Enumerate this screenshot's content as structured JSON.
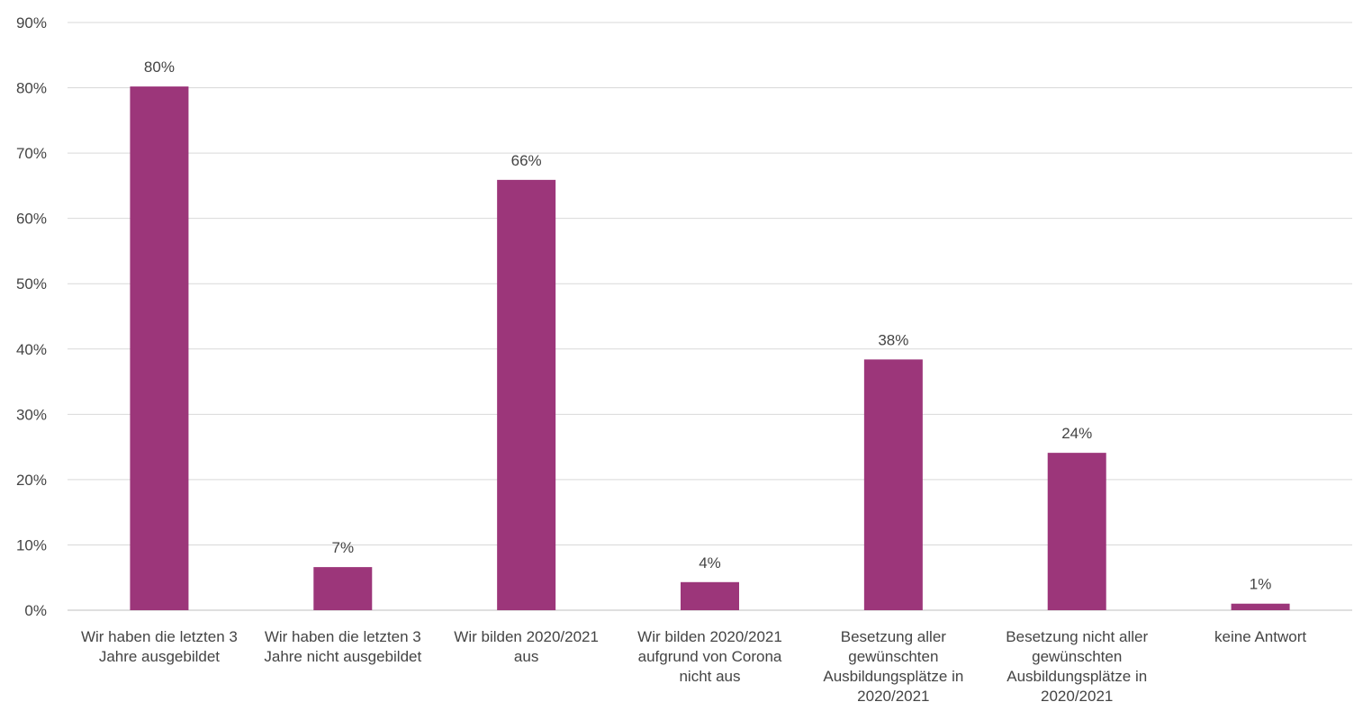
{
  "chart_data": {
    "type": "bar",
    "categories": [
      [
        "Wir haben die letzten 3",
        "Jahre ausgebildet"
      ],
      [
        "Wir haben die letzten 3",
        "Jahre nicht ausgebildet"
      ],
      [
        "Wir bilden 2020/2021",
        "aus"
      ],
      [
        "Wir bilden 2020/2021",
        "aufgrund von Corona",
        "nicht aus"
      ],
      [
        "Besetzung aller",
        "gewünschten",
        "Ausbildungsplätze in",
        "2020/2021"
      ],
      [
        "Besetzung nicht aller",
        "gewünschten",
        "Ausbildungsplätze in",
        "2020/2021"
      ],
      [
        "keine Antwort"
      ]
    ],
    "values": [
      80.2,
      6.6,
      65.9,
      4.3,
      38.4,
      24.1,
      1.0
    ],
    "data_labels": [
      "80%",
      "7%",
      "66%",
      "4%",
      "38%",
      "24%",
      "1%"
    ],
    "y_ticks": [
      "0%",
      "10%",
      "20%",
      "30%",
      "40%",
      "50%",
      "60%",
      "70%",
      "80%",
      "90%"
    ],
    "y_tick_values": [
      0,
      10,
      20,
      30,
      40,
      50,
      60,
      70,
      80,
      90
    ],
    "ylim": [
      0,
      90
    ],
    "grid": true,
    "title": "",
    "xlabel": "",
    "ylabel": "",
    "bar_color": "#9c367a"
  }
}
